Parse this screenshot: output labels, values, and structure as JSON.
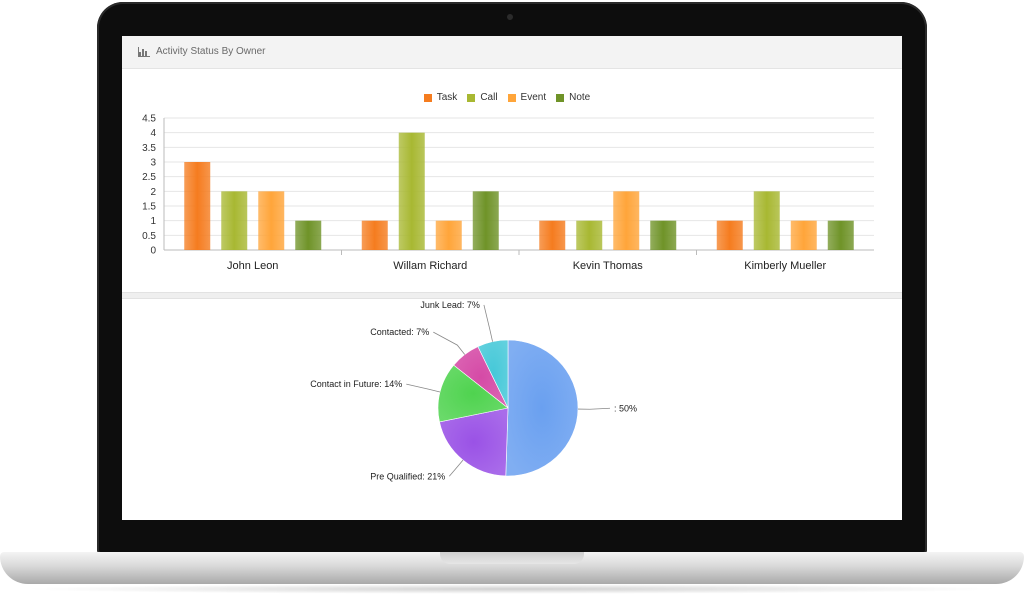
{
  "panel": {
    "title": "Activity Status By Owner",
    "icon": "bar-chart-icon"
  },
  "chart_data": [
    {
      "type": "bar",
      "categories": [
        "John Leon",
        "Willam Richard",
        "Kevin Thomas",
        "Kimberly Mueller"
      ],
      "series": [
        {
          "name": "Task",
          "color": "#f57c1f",
          "values": [
            3,
            1,
            1,
            1
          ]
        },
        {
          "name": "Call",
          "color": "#a8b832",
          "values": [
            2,
            4,
            1,
            2
          ]
        },
        {
          "name": "Event",
          "color": "#ffa53a",
          "values": [
            2,
            1,
            2,
            1
          ]
        },
        {
          "name": "Note",
          "color": "#6f9328",
          "values": [
            1,
            2,
            1,
            1
          ]
        }
      ],
      "yticks": [
        "0",
        "0.5",
        "1",
        "1.5",
        "2",
        "2.5",
        "3",
        "3.5",
        "4",
        "4.5"
      ],
      "ylim": [
        0,
        4.5
      ],
      "legend": "top-center",
      "grid": true
    },
    {
      "type": "pie",
      "slices": [
        {
          "label": ": 50%",
          "value": 50,
          "color": "#6aa0f0"
        },
        {
          "label": "Pre Qualified: 21%",
          "value": 21,
          "color": "#9a52e6"
        },
        {
          "label": "Contact in Future: 14%",
          "value": 14,
          "color": "#4fd34f"
        },
        {
          "label": "Contacted: 7%",
          "value": 7,
          "color": "#d54aa6"
        },
        {
          "label": "Junk Lead: 7%",
          "value": 7,
          "color": "#45c8d8"
        }
      ]
    }
  ]
}
